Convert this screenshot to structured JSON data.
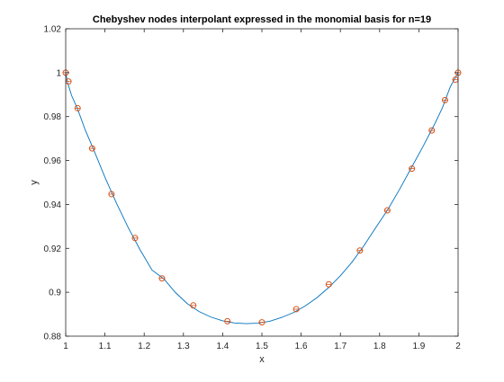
{
  "chart_data": {
    "type": "line",
    "title": "Chebyshev nodes interpolant  expressed in the monomial basis for n=19",
    "xlabel": "x",
    "ylabel": "y",
    "xlim": [
      1,
      2
    ],
    "ylim": [
      0.88,
      1.02
    ],
    "x_ticks": [
      1,
      1.1,
      1.2,
      1.3,
      1.4,
      1.5,
      1.6,
      1.7,
      1.8,
      1.9,
      2
    ],
    "x_tick_labels": [
      "1",
      "1.1",
      "1.2",
      "1.3",
      "1.4",
      "1.5",
      "1.6",
      "1.7",
      "1.8",
      "1.9",
      "2"
    ],
    "y_ticks": [
      0.88,
      0.9,
      0.92,
      0.94,
      0.96,
      0.98,
      1,
      1.02
    ],
    "y_tick_labels": [
      "0.88",
      "0.9",
      "0.92",
      "0.94",
      "0.96",
      "0.98",
      "1",
      "1.02"
    ],
    "grid": false,
    "legend": "none",
    "series": [
      {
        "style": "line",
        "color": "#0072BD",
        "x": [
          1.0,
          1.005,
          1.015,
          1.03,
          1.05,
          1.07,
          1.1,
          1.13,
          1.16,
          1.19,
          1.22,
          1.25,
          1.28,
          1.31,
          1.34,
          1.37,
          1.4,
          1.43,
          1.46,
          1.49,
          1.52,
          1.55,
          1.58,
          1.61,
          1.64,
          1.67,
          1.7,
          1.73,
          1.76,
          1.79,
          1.82,
          1.85,
          1.88,
          1.91,
          1.94,
          1.96,
          1.98,
          1.99,
          2.0
        ],
        "y": [
          1.0,
          0.9954,
          0.9896,
          0.9836,
          0.9738,
          0.9655,
          0.9524,
          0.9403,
          0.9292,
          0.9192,
          0.9101,
          0.9061,
          0.8998,
          0.8948,
          0.8912,
          0.8887,
          0.887,
          0.886,
          0.8857,
          0.8859,
          0.8868,
          0.8885,
          0.8907,
          0.8937,
          0.8975,
          0.9021,
          0.9075,
          0.9138,
          0.9212,
          0.9294,
          0.9374,
          0.9466,
          0.9564,
          0.9662,
          0.9765,
          0.984,
          0.9935,
          0.9968,
          1.0
        ]
      },
      {
        "style": "markers",
        "marker": "circle",
        "color": "#D95319",
        "x": [
          1.0,
          1.007,
          1.0304,
          1.0674,
          1.1167,
          1.1767,
          1.2454,
          1.3252,
          1.4122,
          1.5,
          1.5875,
          1.6705,
          1.7497,
          1.8197,
          1.8822,
          1.9329,
          1.9667,
          1.9933,
          2.0
        ],
        "y": [
          1.0,
          0.996,
          0.9838,
          0.9655,
          0.9447,
          0.9247,
          0.9063,
          0.894,
          0.8868,
          0.8863,
          0.8923,
          0.9036,
          0.919,
          0.9373,
          0.9563,
          0.9737,
          0.9875,
          0.9968,
          1.0
        ]
      }
    ]
  }
}
